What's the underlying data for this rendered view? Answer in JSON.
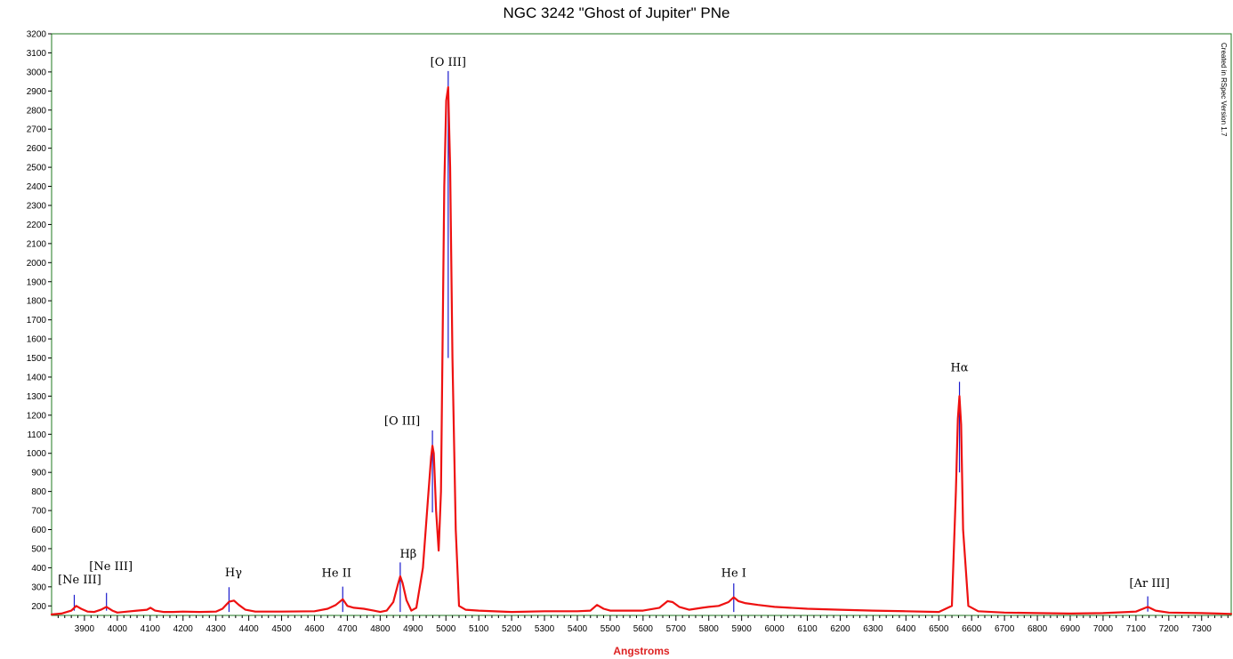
{
  "chart_data": {
    "type": "line",
    "title": "NGC 3242 \"Ghost of Jupiter\" PNe",
    "xlabel": "Angstroms",
    "ylabel": "",
    "xlim": [
      3800,
      7390
    ],
    "ylim": [
      150,
      3200
    ],
    "x_ticks": [
      3900,
      4000,
      4100,
      4200,
      4300,
      4400,
      4500,
      4600,
      4700,
      4800,
      4900,
      5000,
      5100,
      5200,
      5300,
      5400,
      5500,
      5600,
      5700,
      5800,
      5900,
      6000,
      6100,
      6200,
      6300,
      6400,
      6500,
      6600,
      6700,
      6800,
      6900,
      7000,
      7100,
      7200,
      7300
    ],
    "y_ticks": [
      200,
      300,
      400,
      500,
      600,
      700,
      800,
      900,
      1000,
      1100,
      1200,
      1300,
      1400,
      1500,
      1600,
      1700,
      1800,
      1900,
      2000,
      2100,
      2200,
      2300,
      2400,
      2500,
      2600,
      2700,
      2800,
      2900,
      3000,
      3100,
      3200
    ],
    "grid": false,
    "series_color": "#ee1111",
    "marker_color": "#1a1acc",
    "axis_color": "#1f7a1f",
    "series": [
      {
        "x": [
          3800,
          3830,
          3860,
          3875,
          3890,
          3910,
          3930,
          3950,
          3967,
          3985,
          4000,
          4030,
          4060,
          4090,
          4101,
          4115,
          4140,
          4170,
          4200,
          4250,
          4300,
          4320,
          4340,
          4355,
          4370,
          4390,
          4420,
          4500,
          4600,
          4640,
          4665,
          4686,
          4700,
          4720,
          4750,
          4780,
          4800,
          4820,
          4840,
          4855,
          4861,
          4868,
          4880,
          4895,
          4910,
          4930,
          4945,
          4955,
          4959,
          4963,
          4970,
          4978,
          4985,
          4995,
          5001,
          5007,
          5013,
          5020,
          5030,
          5040,
          5060,
          5100,
          5200,
          5300,
          5400,
          5440,
          5460,
          5480,
          5500,
          5600,
          5650,
          5675,
          5690,
          5710,
          5740,
          5780,
          5800,
          5830,
          5860,
          5876,
          5890,
          5910,
          5950,
          6000,
          6100,
          6200,
          6300,
          6400,
          6500,
          6540,
          6552,
          6558,
          6563,
          6568,
          6574,
          6590,
          6620,
          6700,
          6800,
          6900,
          7000,
          7100,
          7136,
          7160,
          7200,
          7300,
          7350,
          7390
        ],
        "y": [
          155,
          160,
          175,
          200,
          185,
          170,
          168,
          180,
          195,
          175,
          165,
          170,
          175,
          180,
          190,
          175,
          168,
          168,
          170,
          168,
          170,
          185,
          222,
          228,
          205,
          180,
          170,
          170,
          172,
          185,
          205,
          235,
          200,
          190,
          185,
          175,
          168,
          175,
          220,
          320,
          355,
          320,
          230,
          175,
          190,
          400,
          750,
          980,
          1040,
          1000,
          700,
          490,
          800,
          2400,
          2850,
          2920,
          2500,
          1500,
          600,
          200,
          180,
          175,
          168,
          172,
          172,
          175,
          205,
          185,
          175,
          175,
          190,
          225,
          220,
          195,
          180,
          190,
          195,
          200,
          220,
          245,
          225,
          215,
          205,
          195,
          185,
          180,
          175,
          172,
          168,
          200,
          800,
          1180,
          1300,
          1150,
          600,
          200,
          172,
          165,
          162,
          160,
          162,
          170,
          195,
          175,
          165,
          162,
          160,
          158
        ]
      }
    ],
    "annotations": [
      {
        "label": "[Ne III]",
        "x": 3869,
        "line_top": 258,
        "line_bottom": 175,
        "text_dx": 6,
        "text_y": 318
      },
      {
        "label": "[Ne III]",
        "x": 3967,
        "line_top": 268,
        "line_bottom": 175,
        "text_dx": 5,
        "text_y": 388
      },
      {
        "label": "Hγ",
        "x": 4340,
        "line_top": 298,
        "line_bottom": 168,
        "text_dx": 5,
        "text_y": 355
      },
      {
        "label": "He II",
        "x": 4686,
        "line_top": 301,
        "line_bottom": 168,
        "text_dx": -7,
        "text_y": 354
      },
      {
        "label": "Hβ",
        "x": 4861,
        "line_top": 428,
        "line_bottom": 168,
        "text_dx": 9,
        "text_y": 452
      },
      {
        "label": "[O III]",
        "x": 4959,
        "line_top": 1120,
        "line_bottom": 690,
        "text_dx": -34,
        "text_y": 1150
      },
      {
        "label": "[O III]",
        "x": 5007,
        "line_top": 3005,
        "line_bottom": 1500,
        "text_dx": 0,
        "text_y": 3033
      },
      {
        "label": "He I",
        "x": 5876,
        "line_top": 318,
        "line_bottom": 168,
        "text_dx": 0,
        "text_y": 354
      },
      {
        "label": "Hα",
        "x": 6563,
        "line_top": 1375,
        "line_bottom": 900,
        "text_dx": 0,
        "text_y": 1430
      },
      {
        "label": "[Ar III]",
        "x": 7136,
        "line_top": 250,
        "line_bottom": 170,
        "text_dx": 2,
        "text_y": 300
      }
    ],
    "watermark": "Created in RSpec Version 1.7"
  }
}
